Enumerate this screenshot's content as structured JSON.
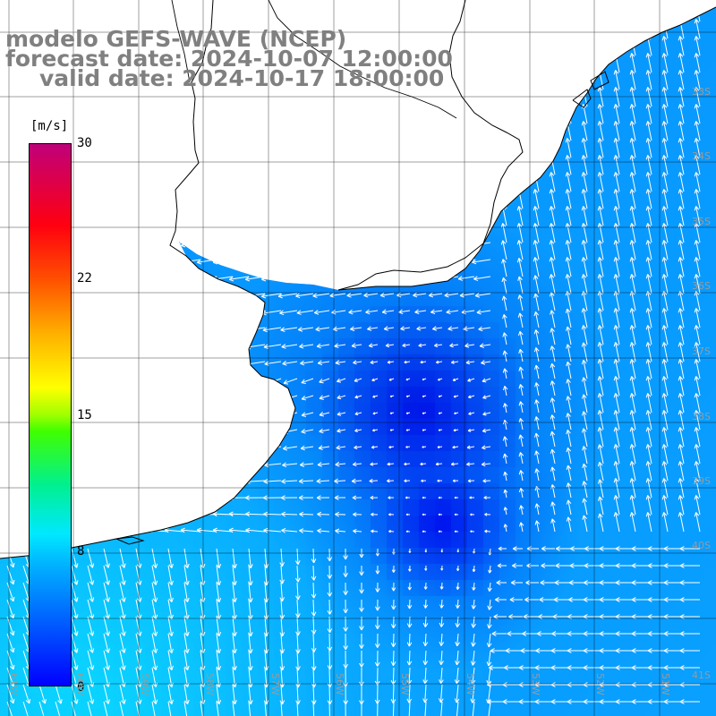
{
  "header": {
    "title": "modelo GEFS-WAVE (NCEP)",
    "forecast": "forecast date: 2024-10-07 12:00:00",
    "valid": "valid date: 2024-10-17 18:00:00"
  },
  "colorbar": {
    "unit": "[m/s]",
    "ticks": [
      "30",
      "22",
      "15",
      "8",
      "0"
    ],
    "stops": [
      "#0000ff",
      "#0090ff",
      "#00e0ff",
      "#00ff80",
      "#60ff00",
      "#ffff00",
      "#ffa000",
      "#ff3000",
      "#ff0030",
      "#c00090"
    ]
  },
  "grid": {
    "lat_labels": [
      "33S",
      "34S",
      "35S",
      "36S",
      "37S",
      "38S",
      "39S",
      "40S",
      "41S"
    ],
    "lon_labels": [
      "61W",
      "60W",
      "59W",
      "58W",
      "57W",
      "56W",
      "55W",
      "54W",
      "53W",
      "52W",
      "51W"
    ]
  },
  "colors": {
    "land": "#ffffff",
    "sea_base": "#1a8cff",
    "deep_low_wind": "#0000ee",
    "coastline": "#000000",
    "arrow": "#ffffff",
    "gridline": "#000000"
  },
  "icons": {
    "wind_vector": "arrow-icon"
  }
}
